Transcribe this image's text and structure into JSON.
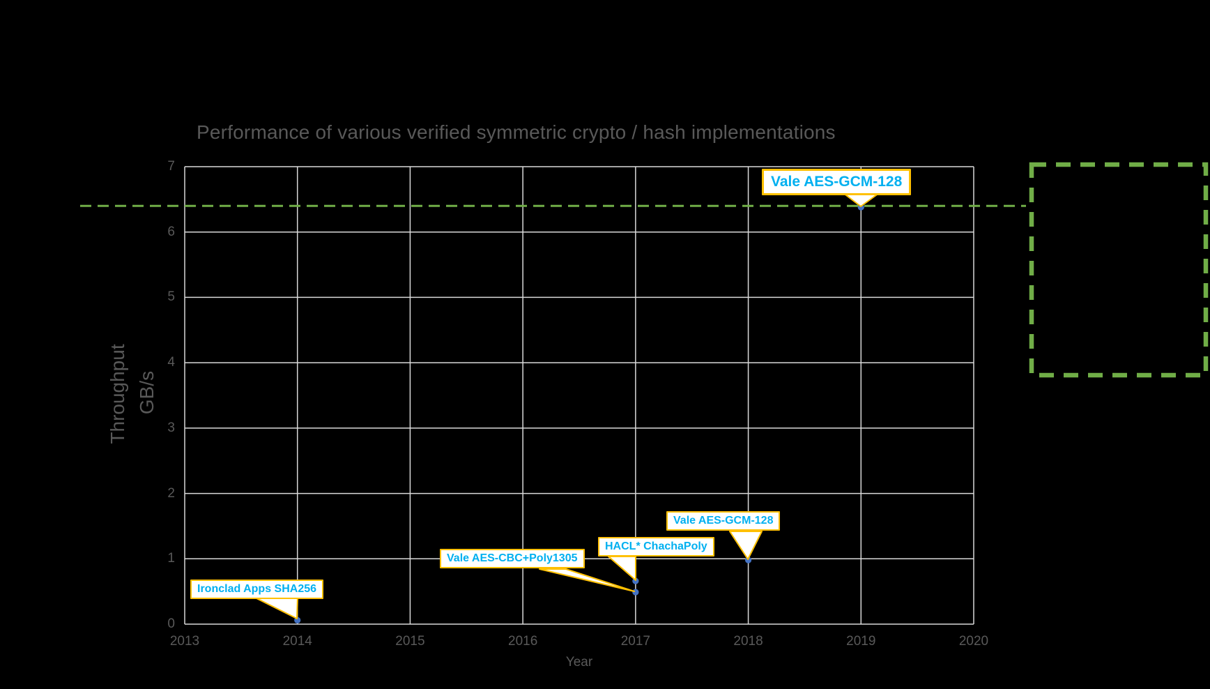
{
  "title": "Performance of various verified symmetric crypto / hash implementations",
  "axes": {
    "x_label": "Year",
    "y_label_line1": "Throughput",
    "y_label_line2": "GB/s",
    "x_ticks": [
      "2013",
      "2014",
      "2015",
      "2016",
      "2017",
      "2018",
      "2019",
      "2020"
    ],
    "y_ticks": [
      "0",
      "1",
      "2",
      "3",
      "4",
      "5",
      "6",
      "7"
    ]
  },
  "chart_data": {
    "type": "scatter",
    "title": "Performance of various verified symmetric crypto / hash implementations",
    "xlabel": "Year",
    "ylabel": "Throughput GB/s",
    "xlim": [
      2013,
      2020
    ],
    "ylim": [
      0,
      7
    ],
    "grid": true,
    "points": [
      {
        "label": "Ironclad Apps SHA256",
        "x": 2014,
        "y": 0.06
      },
      {
        "label": "Vale AES-CBC+Poly1305",
        "x": 2017,
        "y": 0.49
      },
      {
        "label": "HACL* ChachaPoly",
        "x": 2017,
        "y": 0.66
      },
      {
        "label": "Vale AES-GCM-128",
        "x": 2018,
        "y": 0.98
      },
      {
        "label": "Vale AES-GCM-128",
        "x": 2019,
        "y": 6.38
      }
    ],
    "reference_line": {
      "y": 6.4,
      "style": "dashed"
    },
    "highlight_box": {
      "style": "dashed",
      "content": ""
    }
  },
  "colors": {
    "background": "#000000",
    "gridline": "#D9D9D9",
    "text_gray": "#595959",
    "marker_blue": "#4472C4",
    "callout_border_gold": "#FFC000",
    "callout_text_cyan": "#00B0F0",
    "callout_fill": "#FFFFFF",
    "dashed_green": "#70AD47"
  }
}
